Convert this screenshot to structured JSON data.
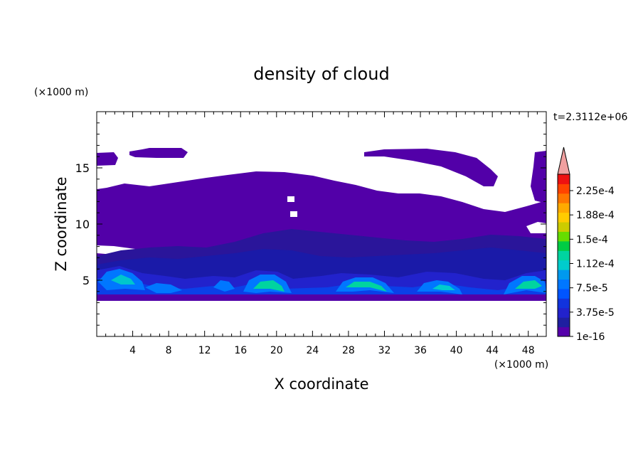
{
  "chart_data": {
    "type": "heatmap",
    "subtype": "filled-contour",
    "title": "density of cloud",
    "xlabel": "X coordinate",
    "ylabel": "Z coordinate",
    "x_unit": "(×1000 m)",
    "y_unit": "(×1000 m)",
    "time_label": "t=2.3112e+06",
    "xlim": [
      0,
      50
    ],
    "ylim": [
      0,
      20
    ],
    "x_ticks": [
      "4",
      "8",
      "12",
      "16",
      "20",
      "24",
      "28",
      "32",
      "36",
      "40",
      "44",
      "48"
    ],
    "y_ticks": [
      "5",
      "10",
      "15"
    ],
    "colorbar": {
      "labels": [
        "2.25e-4",
        "1.88e-4",
        "1.5e-4",
        "1.12e-4",
        "7.5e-5",
        "3.75e-5",
        "1e-16"
      ],
      "colors": [
        "#5500aa",
        "#1f1fa0",
        "#2222cc",
        "#1133dd",
        "#0055ff",
        "#0077ff",
        "#0099ee",
        "#00cccc",
        "#00d4a0",
        "#00cc44",
        "#66dd00",
        "#cccc00",
        "#ffcc00",
        "#ffaa00",
        "#ff7700",
        "#ff4400",
        "#ee1111",
        "#f0a0a0"
      ],
      "extend": "max"
    },
    "grid": false,
    "description_note": ""
  }
}
